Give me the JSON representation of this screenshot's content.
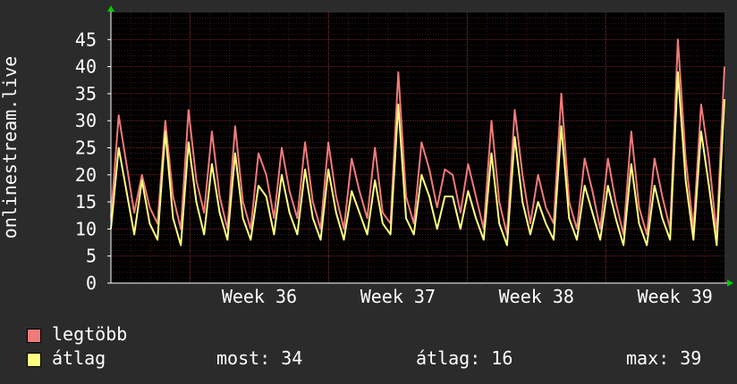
{
  "chart_data": {
    "type": "line",
    "ylabel": "onlinestream.live",
    "ylim": [
      0,
      50
    ],
    "yticks": [
      0,
      5,
      10,
      15,
      20,
      25,
      30,
      35,
      40,
      45
    ],
    "xticks": [
      "Week 36",
      "Week 37",
      "Week 38",
      "Week 39"
    ],
    "x_range_days": [
      0,
      31
    ],
    "grid": true,
    "series": [
      {
        "name": "legtöbb",
        "color": "#f07a7a",
        "values": [
          12,
          31,
          22,
          13,
          20,
          14,
          11,
          30,
          16,
          10,
          32,
          19,
          13,
          28,
          16,
          10,
          29,
          15,
          10,
          24,
          20,
          12,
          25,
          17,
          12,
          26,
          15,
          10,
          26,
          16,
          10,
          23,
          17,
          12,
          25,
          13,
          11,
          39,
          16,
          11,
          26,
          21,
          14,
          21,
          20,
          13,
          22,
          16,
          10,
          30,
          15,
          9,
          32,
          20,
          11,
          20,
          14,
          11,
          35,
          15,
          10,
          23,
          17,
          10,
          23,
          15,
          9,
          28,
          14,
          9,
          23,
          16,
          10,
          45,
          23,
          10,
          33,
          23,
          9,
          40
        ]
      },
      {
        "name": "átlag",
        "color": "#ffff80",
        "values": [
          10,
          25,
          17,
          9,
          19,
          11,
          8,
          28,
          12,
          7,
          26,
          15,
          9,
          22,
          13,
          8,
          24,
          12,
          8,
          18,
          16,
          9,
          20,
          13,
          9,
          21,
          12,
          8,
          21,
          13,
          8,
          17,
          13,
          9,
          19,
          11,
          9,
          33,
          12,
          9,
          20,
          16,
          10,
          16,
          16,
          10,
          17,
          12,
          8,
          24,
          11,
          7,
          27,
          15,
          9,
          15,
          11,
          8,
          29,
          12,
          8,
          18,
          13,
          8,
          18,
          12,
          7,
          22,
          11,
          7,
          18,
          12,
          8,
          39,
          19,
          8,
          28,
          18,
          7,
          34
        ]
      }
    ]
  },
  "legend": {
    "max_label": "legtöbb",
    "avg_label": "átlag",
    "stats": [
      {
        "label": "most:",
        "value": "34"
      },
      {
        "label": "átlag:",
        "value": "16"
      },
      {
        "label": "max:",
        "value": "39"
      }
    ]
  }
}
